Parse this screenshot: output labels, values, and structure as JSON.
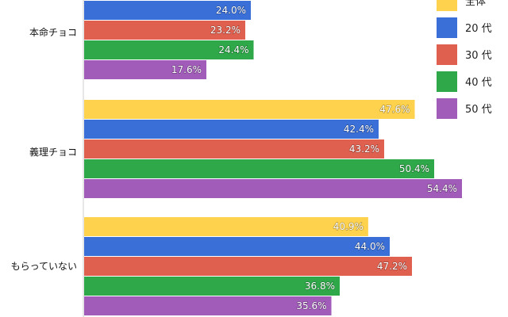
{
  "chart_data": {
    "type": "bar",
    "orientation": "horizontal",
    "categories": [
      "本命チョコ",
      "義理チョコ",
      "もらっていない"
    ],
    "series": [
      {
        "name": "全体",
        "color": "#ffd24d",
        "values": [
          null,
          47.6,
          40.9
        ],
        "labels": [
          null,
          "47.6%",
          "40.9%"
        ]
      },
      {
        "name": "20 代",
        "color": "#3a6fd8",
        "values": [
          24.0,
          42.4,
          44.0
        ],
        "labels": [
          "24.0%",
          "42.4%",
          "44.0%"
        ]
      },
      {
        "name": "30 代",
        "color": "#e0604f",
        "values": [
          23.2,
          43.2,
          47.2
        ],
        "labels": [
          "23.2%",
          "43.2%",
          "47.2%"
        ]
      },
      {
        "name": "40 代",
        "color": "#2fa84a",
        "values": [
          24.4,
          50.4,
          36.8
        ],
        "labels": [
          "24.4%",
          "50.4%",
          "36.8%"
        ]
      },
      {
        "name": "50 代",
        "color": "#a05cb8",
        "values": [
          17.6,
          54.4,
          35.6
        ],
        "labels": [
          "17.6%",
          "54.4%",
          "35.6%"
        ]
      }
    ],
    "title": "",
    "xlabel": "",
    "ylabel": "",
    "grid": false,
    "legend": "right"
  }
}
